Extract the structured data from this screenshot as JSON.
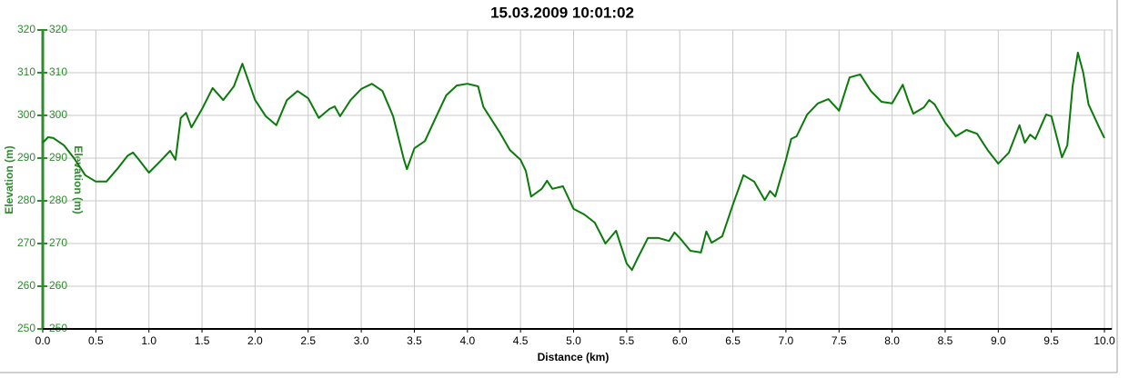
{
  "chart_data": {
    "type": "line",
    "title": "15.03.2009 10:01:02",
    "xlabel": "Distance (km)",
    "ylabel": "Elevation (m)",
    "y2label": "Elevation (m)",
    "x": [
      0,
      0.05,
      0.1,
      0.2,
      0.3,
      0.4,
      0.5,
      0.6,
      0.7,
      0.8,
      0.85,
      0.9,
      1.0,
      1.1,
      1.2,
      1.25,
      1.3,
      1.35,
      1.4,
      1.5,
      1.6,
      1.7,
      1.8,
      1.88,
      2.0,
      2.1,
      2.2,
      2.3,
      2.4,
      2.5,
      2.6,
      2.7,
      2.75,
      2.8,
      2.9,
      3.0,
      3.1,
      3.2,
      3.3,
      3.4,
      3.43,
      3.5,
      3.6,
      3.7,
      3.8,
      3.9,
      4.0,
      4.1,
      4.15,
      4.3,
      4.4,
      4.5,
      4.55,
      4.6,
      4.7,
      4.75,
      4.8,
      4.9,
      5.0,
      5.1,
      5.2,
      5.3,
      5.4,
      5.5,
      5.55,
      5.6,
      5.7,
      5.8,
      5.9,
      5.95,
      6.0,
      6.1,
      6.2,
      6.25,
      6.3,
      6.4,
      6.5,
      6.6,
      6.7,
      6.8,
      6.85,
      6.9,
      7.0,
      7.05,
      7.1,
      7.2,
      7.3,
      7.4,
      7.5,
      7.6,
      7.7,
      7.8,
      7.9,
      8.0,
      8.1,
      8.15,
      8.2,
      8.3,
      8.35,
      8.4,
      8.5,
      8.6,
      8.7,
      8.8,
      8.9,
      9.0,
      9.1,
      9.2,
      9.25,
      9.3,
      9.35,
      9.45,
      9.5,
      9.6,
      9.65,
      9.7,
      9.75,
      9.8,
      9.85,
      9.95,
      10.0
    ],
    "series": [
      {
        "name": "Elevation",
        "color": "#0a7a0a",
        "values": [
          293.6,
          294.9,
          294.7,
          293,
          289.8,
          286,
          284.5,
          284.5,
          287.4,
          290.6,
          291.3,
          289.8,
          286.6,
          289.1,
          291.7,
          289.6,
          299.4,
          300.6,
          297.2,
          301.5,
          306.4,
          303.6,
          306.8,
          312.1,
          303.6,
          299.8,
          297.7,
          303.6,
          305.7,
          304,
          299.4,
          301.5,
          302.1,
          299.8,
          303.6,
          306.2,
          307.4,
          305.7,
          299.8,
          289.8,
          287.4,
          292.3,
          294,
          299.4,
          304.7,
          307,
          307.4,
          306.8,
          302,
          296.2,
          291.9,
          289.6,
          287,
          281,
          282.8,
          284.7,
          282.8,
          283.4,
          278.1,
          276.8,
          274.9,
          270,
          273,
          265.3,
          263.8,
          266.4,
          271.3,
          271.3,
          270.6,
          272.6,
          271.3,
          268.3,
          267.9,
          272.8,
          270.2,
          271.7,
          279.1,
          286,
          284.5,
          280.2,
          282.3,
          281,
          289.6,
          294.5,
          295.1,
          300.2,
          302.8,
          303.8,
          301.1,
          308.9,
          309.6,
          305.7,
          303.2,
          302.8,
          307.2,
          303.6,
          300.4,
          301.9,
          303.6,
          302.6,
          298.3,
          295.1,
          296.6,
          295.7,
          291.9,
          288.7,
          291.3,
          297.7,
          293.6,
          295.5,
          294.5,
          300.2,
          299.8,
          290.2,
          293,
          306.8,
          314.7,
          310,
          302.6,
          297.2,
          294.7
        ]
      }
    ],
    "xlim": [
      0,
      10.07
    ],
    "xticks": [
      {
        "value": 0,
        "label": "0.0"
      },
      0.5,
      {
        "value": 1,
        "label": "1.0"
      },
      1.5,
      {
        "value": 2,
        "label": "2.0"
      },
      2.5,
      {
        "value": 3,
        "label": "3.0"
      },
      3.5,
      {
        "value": 4,
        "label": "4.0"
      },
      4.5,
      {
        "value": 5,
        "label": "5.0"
      },
      5.5,
      {
        "value": 6,
        "label": "6.0"
      },
      6.5,
      {
        "value": 7,
        "label": "7.0"
      },
      7.5,
      {
        "value": 8,
        "label": "8.0"
      },
      8.5,
      {
        "value": 9,
        "label": "9.0"
      },
      9.5,
      {
        "value": 10,
        "label": "10.0"
      }
    ],
    "ylim": [
      250,
      320
    ],
    "yticks": [
      250,
      260,
      270,
      280,
      290,
      300,
      310,
      320
    ],
    "y2lim": [
      250,
      320
    ],
    "y2ticks": [
      250,
      260,
      270,
      280,
      290,
      300,
      310,
      320
    ],
    "grid": true,
    "axis_color": "#2e8b2e"
  }
}
